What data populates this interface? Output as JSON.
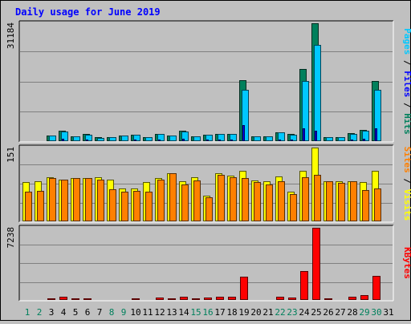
{
  "chart_data": {
    "type": "bar",
    "title": "Daily usage for June 2019",
    "categories": [
      "1",
      "2",
      "3",
      "4",
      "5",
      "6",
      "7",
      "8",
      "9",
      "10",
      "11",
      "12",
      "13",
      "14",
      "15",
      "16",
      "17",
      "18",
      "19",
      "20",
      "21",
      "22",
      "23",
      "24",
      "25",
      "26",
      "27",
      "28",
      "29",
      "30",
      "31"
    ],
    "weekend_days": [
      "1",
      "2",
      "8",
      "9",
      "15",
      "16",
      "22",
      "23",
      "29",
      "30"
    ],
    "panels": [
      {
        "id": "hits-files-pages",
        "max_label": "31184",
        "ymax": 31184,
        "side_labels": [
          "Pages",
          "Files",
          "Hits"
        ],
        "series": [
          {
            "name": "Hits",
            "color": "#00805c",
            "values": [
              250,
              250,
              1500,
              2700,
              1300,
              1900,
              1000,
              1100,
              1500,
              1800,
              1100,
              2000,
              1500,
              2700,
              1300,
              1800,
              2000,
              2000,
              16200,
              1300,
              1300,
              2400,
              1900,
              19000,
              31184,
              1100,
              1100,
              2100,
              2900,
              16000,
              0
            ]
          },
          {
            "name": "Files",
            "color": "#00c8ff",
            "values": [
              200,
              200,
              1400,
              2600,
              1200,
              1800,
              900,
              1000,
              1400,
              1700,
              1000,
              1900,
              1400,
              2600,
              1200,
              1700,
              1900,
              1900,
              13500,
              1200,
              1200,
              2300,
              1800,
              16000,
              25500,
              1000,
              1000,
              2000,
              2800,
              13500,
              0
            ]
          },
          {
            "name": "Pages",
            "color": "#0000ff",
            "values": [
              80,
              80,
              300,
              600,
              300,
              400,
              200,
              200,
              300,
              400,
              200,
              400,
              300,
              600,
              300,
              400,
              400,
              400,
              4200,
              300,
              300,
              500,
              400,
              3500,
              2800,
              200,
              200,
              400,
              600,
              3500,
              0
            ]
          }
        ]
      },
      {
        "id": "visits-sites",
        "max_label": "151",
        "ymax": 151,
        "side_labels": [
          "Sites",
          "Visits"
        ],
        "series": [
          {
            "name": "Visits",
            "color": "#ffff00",
            "values": [
              80,
              82,
              90,
              86,
              88,
              88,
              90,
              85,
              67,
              68,
              80,
              88,
              98,
              82,
              90,
              52,
              98,
              94,
              104,
              84,
              82,
              92,
              60,
              104,
              151,
              82,
              82,
              82,
              80,
              104,
              0
            ]
          },
          {
            "name": "Sites",
            "color": "#ff8000",
            "values": [
              60,
              62,
              88,
              86,
              88,
              88,
              86,
              65,
              60,
              62,
              60,
              86,
              98,
              76,
              84,
              50,
              96,
              90,
              88,
              80,
              76,
              82,
              55,
              90,
              96,
              82,
              78,
              82,
              64,
              68,
              0
            ]
          }
        ]
      },
      {
        "id": "kbytes",
        "max_label": "7238",
        "ymax": 7238,
        "side_labels": [
          "KBytes"
        ],
        "series": [
          {
            "name": "KBytes",
            "color": "#ff0000",
            "values": [
              50,
              50,
              200,
              350,
              150,
              150,
              100,
              100,
              100,
              200,
              100,
              250,
              150,
              350,
              150,
              250,
              300,
              300,
              2300,
              100,
              100,
              300,
              250,
              2900,
              7238,
              150,
              100,
              300,
              500,
              2400,
              0
            ]
          }
        ]
      }
    ]
  }
}
